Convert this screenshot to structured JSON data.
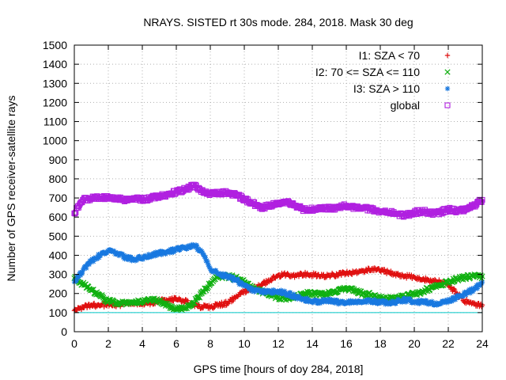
{
  "chart_data": {
    "type": "scatter",
    "title": "NRAYS. SISTED rt 30s mode. 284, 2018. Mask 30 deg",
    "xlabel": "GPS time [hours of doy 284, 2018]",
    "ylabel": "Number of GPS receiver-satellite rays",
    "xlim": [
      0,
      24
    ],
    "ylim": [
      0,
      1500
    ],
    "xticks": [
      0,
      2,
      4,
      6,
      8,
      10,
      12,
      14,
      16,
      18,
      20,
      22,
      24
    ],
    "yticks": [
      0,
      100,
      200,
      300,
      400,
      500,
      600,
      700,
      800,
      900,
      1000,
      1100,
      1200,
      1300,
      1400,
      1500
    ],
    "grid": true,
    "legend_position": "top-right",
    "reference_line": {
      "y": 100,
      "color": "#00c8c8"
    },
    "series": [
      {
        "name": "I1: SZA < 70",
        "marker": "+",
        "color": "#e01010",
        "x": [
          0,
          0.5,
          1,
          1.5,
          2,
          2.5,
          3,
          3.5,
          4,
          4.5,
          5,
          5.5,
          6,
          6.5,
          7,
          7.5,
          8,
          8.5,
          9,
          9.5,
          10,
          10.5,
          11,
          11.5,
          12,
          12.5,
          13,
          13.5,
          14,
          14.5,
          15,
          15.5,
          16,
          16.5,
          17,
          17.5,
          18,
          18.5,
          19,
          19.5,
          20,
          20.5,
          21,
          21.5,
          22,
          22.5,
          23,
          23.5,
          24
        ],
        "y": [
          110,
          130,
          140,
          135,
          145,
          140,
          145,
          150,
          145,
          150,
          160,
          165,
          170,
          160,
          140,
          130,
          130,
          140,
          150,
          180,
          210,
          230,
          245,
          270,
          295,
          300,
          295,
          300,
          300,
          290,
          295,
          300,
          305,
          310,
          320,
          330,
          320,
          310,
          300,
          290,
          285,
          275,
          265,
          260,
          245,
          200,
          160,
          145,
          140
        ]
      },
      {
        "name": "I2: 70 <= SZA <= 110",
        "marker": "x",
        "color": "#10b010",
        "x": [
          0,
          0.5,
          1,
          1.5,
          2,
          2.5,
          3,
          3.5,
          4,
          4.5,
          5,
          5.5,
          6,
          6.5,
          7,
          7.5,
          8,
          8.5,
          9,
          9.5,
          10,
          10.5,
          11,
          11.5,
          12,
          12.5,
          13,
          13.5,
          14,
          14.5,
          15,
          15.5,
          16,
          16.5,
          17,
          17.5,
          18,
          18.5,
          19,
          19.5,
          20,
          20.5,
          21,
          21.5,
          22,
          22.5,
          23,
          23.5,
          24
        ],
        "y": [
          280,
          250,
          220,
          190,
          160,
          150,
          150,
          155,
          160,
          165,
          160,
          140,
          115,
          125,
          150,
          200,
          250,
          290,
          290,
          280,
          260,
          230,
          210,
          195,
          180,
          175,
          185,
          200,
          200,
          195,
          200,
          210,
          225,
          215,
          200,
          190,
          175,
          170,
          180,
          185,
          200,
          210,
          230,
          245,
          260,
          275,
          285,
          290,
          290
        ]
      },
      {
        "name": "I3: SZA > 110",
        "marker": "*",
        "color": "#1878e0",
        "x": [
          0,
          0.5,
          1,
          1.5,
          2,
          2.5,
          3,
          3.5,
          4,
          4.5,
          5,
          5.5,
          6,
          6.5,
          7,
          7.5,
          8,
          8.5,
          9,
          9.5,
          10,
          10.5,
          11,
          11.5,
          12,
          12.5,
          13,
          13.5,
          14,
          14.5,
          15,
          15.5,
          16,
          16.5,
          17,
          17.5,
          18,
          18.5,
          19,
          19.5,
          20,
          20.5,
          21,
          21.5,
          22,
          22.5,
          23,
          23.5,
          24
        ],
        "y": [
          260,
          320,
          370,
          400,
          420,
          410,
          390,
          380,
          385,
          400,
          410,
          420,
          430,
          440,
          455,
          420,
          330,
          300,
          290,
          270,
          240,
          220,
          210,
          210,
          210,
          200,
          185,
          170,
          155,
          160,
          165,
          155,
          150,
          155,
          160,
          160,
          155,
          150,
          160,
          165,
          160,
          155,
          150,
          145,
          160,
          180,
          200,
          220,
          260
        ]
      },
      {
        "name": "global",
        "marker": "square",
        "color": "#b020e0",
        "x": [
          0,
          0.5,
          1,
          1.5,
          2,
          2.5,
          3,
          3.5,
          4,
          4.5,
          5,
          5.5,
          6,
          6.5,
          7,
          7.5,
          8,
          8.5,
          9,
          9.5,
          10,
          10.5,
          11,
          11.5,
          12,
          12.5,
          13,
          13.5,
          14,
          14.5,
          15,
          15.5,
          16,
          16.5,
          17,
          17.5,
          18,
          18.5,
          19,
          19.5,
          20,
          20.5,
          21,
          21.5,
          22,
          22.5,
          23,
          23.5,
          24
        ],
        "y": [
          620,
          690,
          700,
          705,
          700,
          695,
          690,
          700,
          690,
          700,
          710,
          720,
          730,
          745,
          765,
          740,
          720,
          725,
          730,
          715,
          695,
          670,
          650,
          660,
          670,
          680,
          660,
          640,
          640,
          650,
          645,
          650,
          660,
          650,
          650,
          640,
          630,
          625,
          615,
          610,
          625,
          630,
          620,
          625,
          640,
          630,
          640,
          660,
          690
        ]
      }
    ]
  }
}
